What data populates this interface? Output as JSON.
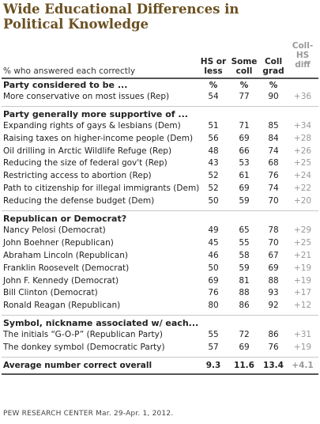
{
  "title": "Wide Educational Differences in Political Knowledge",
  "subtitle": "% who answered each correctly",
  "columns": [
    {
      "label": "HS or\nless",
      "pct": "%"
    },
    {
      "label": "Some\ncoll",
      "pct": "%"
    },
    {
      "label": "Coll\ngrad",
      "pct": "%"
    },
    {
      "label": "Coll-\nHS\ndiff",
      "pct": ""
    }
  ],
  "sections": [
    {
      "heading": "Party considered to be ...",
      "rows": [
        {
          "label": "More conservative on most issues (Rep)",
          "values": [
            "54",
            "77",
            "90",
            "+36"
          ]
        }
      ]
    },
    {
      "heading": "Party generally more supportive of ...",
      "rows": [
        {
          "label": "Expanding rights of gays & lesbians (Dem)",
          "values": [
            "51",
            "71",
            "85",
            "+34"
          ]
        },
        {
          "label": "Raising taxes on higher-income people (Dem)",
          "values": [
            "56",
            "69",
            "84",
            "+28"
          ]
        },
        {
          "label": "Oil drilling in Arctic Wildlife Refuge (Rep)",
          "values": [
            "48",
            "66",
            "74",
            "+26"
          ]
        },
        {
          "label": "Reducing the size of federal gov't (Rep)",
          "values": [
            "43",
            "53",
            "68",
            "+25"
          ]
        },
        {
          "label": "Restricting access to abortion (Rep)",
          "values": [
            "52",
            "61",
            "76",
            "+24"
          ]
        },
        {
          "label": "Path to citizenship for illegal immigrants (Dem)",
          "values": [
            "52",
            "69",
            "74",
            "+22"
          ]
        },
        {
          "label": "Reducing the defense budget (Dem)",
          "values": [
            "50",
            "59",
            "70",
            "+20"
          ]
        }
      ]
    },
    {
      "heading": "Republican or Democrat?",
      "rows": [
        {
          "label": "Nancy Pelosi (Democrat)",
          "values": [
            "49",
            "65",
            "78",
            "+29"
          ]
        },
        {
          "label": "John Boehner (Republican)",
          "values": [
            "45",
            "55",
            "70",
            "+25"
          ]
        },
        {
          "label": "Abraham Lincoln (Republican)",
          "values": [
            "46",
            "58",
            "67",
            "+21"
          ]
        },
        {
          "label": "Franklin Roosevelt (Democrat)",
          "values": [
            "50",
            "59",
            "69",
            "+19"
          ]
        },
        {
          "label": "John F. Kennedy (Democrat)",
          "values": [
            "69",
            "81",
            "88",
            "+19"
          ]
        },
        {
          "label": "Bill Clinton (Democrat)",
          "values": [
            "76",
            "88",
            "93",
            "+17"
          ]
        },
        {
          "label": "Ronald Reagan (Republican)",
          "values": [
            "80",
            "86",
            "92",
            "+12"
          ]
        }
      ]
    },
    {
      "heading": "Symbol, nickname associated w/ each...",
      "rows": [
        {
          "label": "The initials “G-O-P” (Republican Party)",
          "values": [
            "55",
            "72",
            "86",
            "+31"
          ]
        },
        {
          "label": "The donkey symbol (Democratic Party)",
          "values": [
            "57",
            "69",
            "76",
            "+19"
          ]
        }
      ]
    }
  ],
  "average": {
    "label": "Average number correct overall",
    "values": [
      "9.3",
      "11.6",
      "13.4",
      "+4.1"
    ]
  },
  "footer": "PEW RESEARCH CENTER Mar. 29-Apr. 1, 2012."
}
